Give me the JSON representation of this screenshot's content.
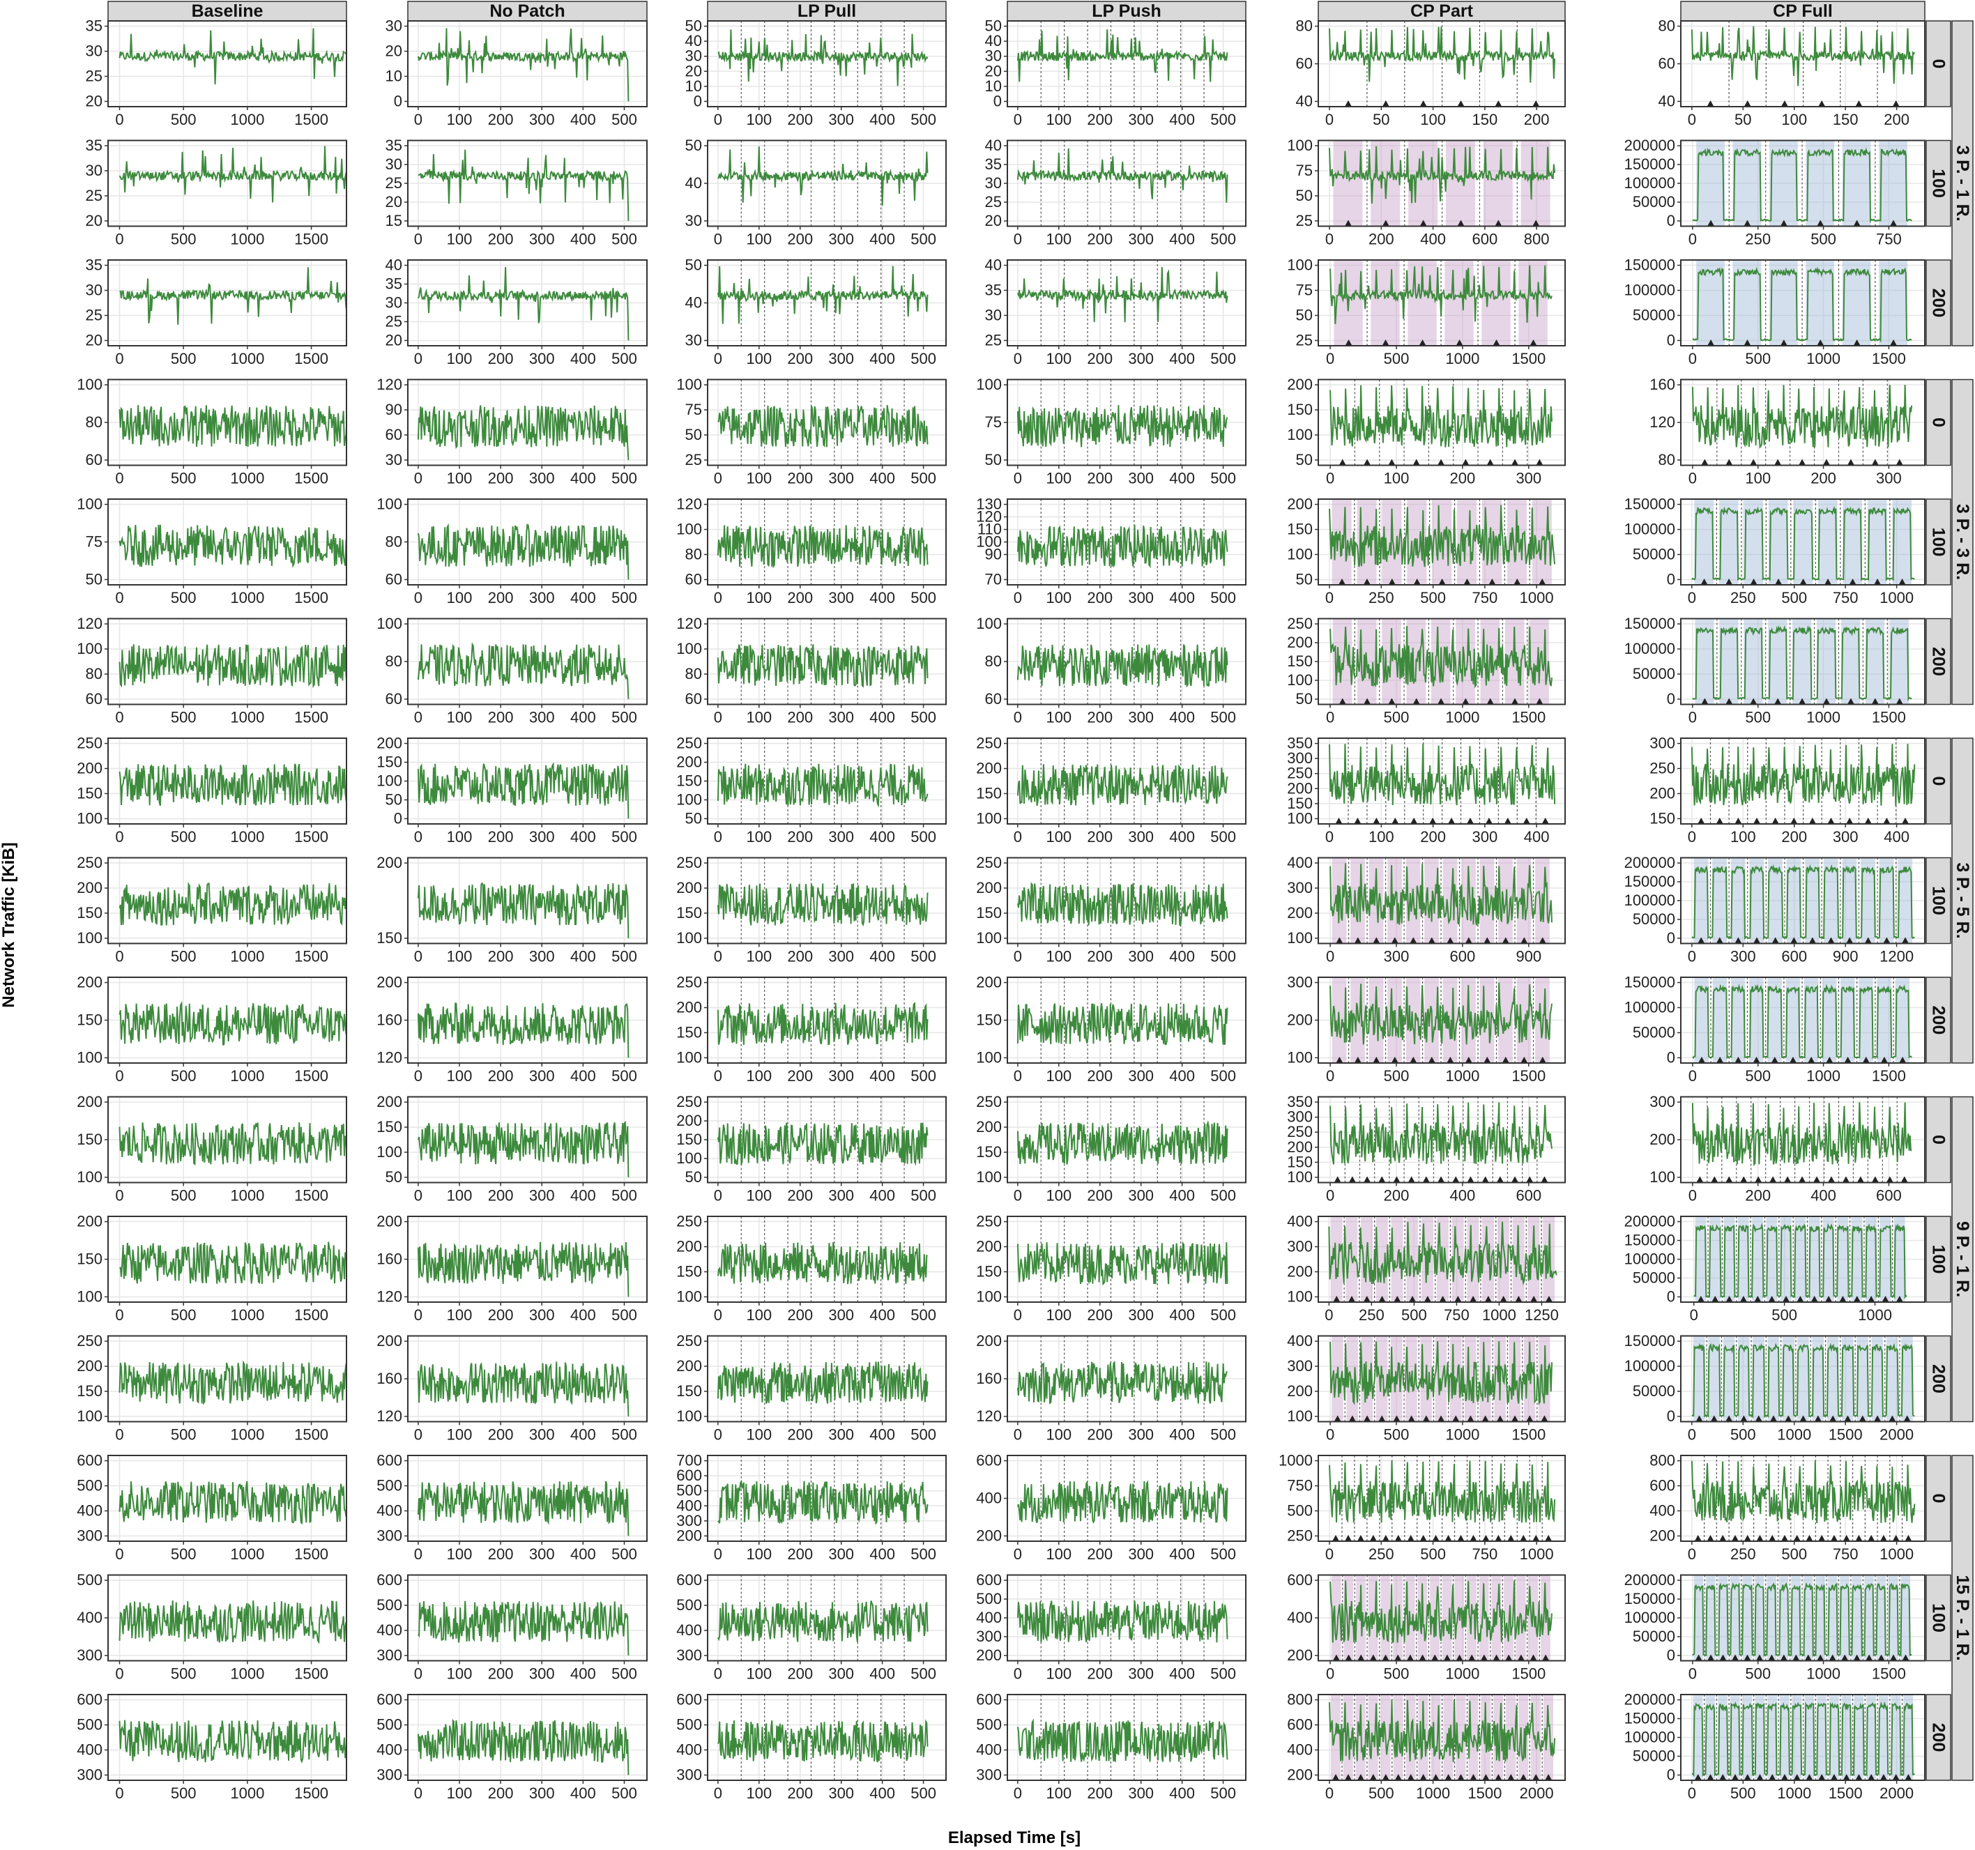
{
  "x_axis_label": "Elapsed Time [s]",
  "y_axis_label": "Network Traffic [KiB]",
  "column_headers": [
    "Baseline",
    "No Patch",
    "LP Pull",
    "LP Push",
    "CP Part",
    "CP Full"
  ],
  "row_group_labels": [
    "3 P. - 1 R.",
    "3 P. - 3 R.",
    "3 P. - 5 R.",
    "9 P. - 1 R.",
    "15 P. - 1 R."
  ],
  "row_labels": [
    "0",
    "100",
    "200",
    "0",
    "100",
    "200",
    "0",
    "100",
    "200",
    "0",
    "100",
    "200",
    "0",
    "100",
    "200"
  ],
  "colors": {
    "series": "#3d8a3d",
    "panel_border": "#333333",
    "grid": "#e6e6e6",
    "strip_bg": "#d9d9d9",
    "shade_part": "#c8a2c8",
    "shade_full": "#9fb8d6",
    "marker": "#222222"
  },
  "chart_data": {
    "type": "line",
    "facet_grid": {
      "columns": 6,
      "rows": 15
    },
    "x_ticks": [
      [
        [
          0,
          500,
          1000,
          1500
        ],
        [
          0,
          100,
          200,
          300,
          400,
          500
        ],
        [
          0,
          100,
          200,
          300,
          400,
          500
        ],
        [
          0,
          100,
          200,
          300,
          400,
          500
        ],
        [
          0,
          50,
          100,
          150,
          200
        ],
        [
          0,
          50,
          100,
          150,
          200
        ]
      ],
      [
        [
          0,
          500,
          1000,
          1500
        ],
        [
          0,
          100,
          200,
          300,
          400,
          500
        ],
        [
          0,
          100,
          200,
          300,
          400,
          500
        ],
        [
          0,
          100,
          200,
          300,
          400,
          500
        ],
        [
          0,
          200,
          400,
          600,
          800
        ],
        [
          0,
          250,
          500,
          750
        ]
      ],
      [
        [
          0,
          500,
          1000,
          1500
        ],
        [
          0,
          100,
          200,
          300,
          400,
          500
        ],
        [
          0,
          100,
          200,
          300,
          400,
          500
        ],
        [
          0,
          100,
          200,
          300,
          400,
          500
        ],
        [
          0,
          500,
          1000,
          1500
        ],
        [
          0,
          500,
          1000,
          1500
        ]
      ],
      [
        [
          0,
          500,
          1000,
          1500
        ],
        [
          0,
          100,
          200,
          300,
          400,
          500
        ],
        [
          0,
          100,
          200,
          300,
          400,
          500
        ],
        [
          0,
          100,
          200,
          300,
          400,
          500
        ],
        [
          0,
          100,
          200,
          300
        ],
        [
          0,
          100,
          200,
          300
        ]
      ],
      [
        [
          0,
          500,
          1000,
          1500
        ],
        [
          0,
          100,
          200,
          300,
          400,
          500
        ],
        [
          0,
          100,
          200,
          300,
          400,
          500
        ],
        [
          0,
          100,
          200,
          300,
          400,
          500
        ],
        [
          0,
          250,
          500,
          750,
          1000
        ],
        [
          0,
          250,
          500,
          750,
          1000
        ]
      ],
      [
        [
          0,
          500,
          1000,
          1500
        ],
        [
          0,
          100,
          200,
          300,
          400,
          500
        ],
        [
          0,
          100,
          200,
          300,
          400,
          500
        ],
        [
          0,
          100,
          200,
          300,
          400,
          500
        ],
        [
          0,
          500,
          1000,
          1500
        ],
        [
          0,
          500,
          1000,
          1500
        ]
      ],
      [
        [
          0,
          500,
          1000,
          1500
        ],
        [
          0,
          100,
          200,
          300,
          400,
          500
        ],
        [
          0,
          100,
          200,
          300,
          400,
          500
        ],
        [
          0,
          100,
          200,
          300,
          400,
          500
        ],
        [
          0,
          100,
          200,
          300,
          400
        ],
        [
          0,
          100,
          200,
          300,
          400
        ]
      ],
      [
        [
          0,
          500,
          1000,
          1500
        ],
        [
          0,
          100,
          200,
          300,
          400,
          500
        ],
        [
          0,
          100,
          200,
          300,
          400,
          500
        ],
        [
          0,
          100,
          200,
          300,
          400,
          500
        ],
        [
          0,
          300,
          600,
          900
        ],
        [
          0,
          300,
          600,
          900,
          1200
        ]
      ],
      [
        [
          0,
          500,
          1000,
          1500
        ],
        [
          0,
          100,
          200,
          300,
          400,
          500
        ],
        [
          0,
          100,
          200,
          300,
          400,
          500
        ],
        [
          0,
          100,
          200,
          300,
          400,
          500
        ],
        [
          0,
          500,
          1000,
          1500
        ],
        [
          0,
          500,
          1000,
          1500
        ]
      ],
      [
        [
          0,
          500,
          1000,
          1500
        ],
        [
          0,
          100,
          200,
          300,
          400,
          500
        ],
        [
          0,
          100,
          200,
          300,
          400,
          500
        ],
        [
          0,
          100,
          200,
          300,
          400,
          500
        ],
        [
          0,
          200,
          400,
          600
        ],
        [
          0,
          200,
          400,
          600
        ]
      ],
      [
        [
          0,
          500,
          1000,
          1500
        ],
        [
          0,
          100,
          200,
          300,
          400,
          500
        ],
        [
          0,
          100,
          200,
          300,
          400,
          500
        ],
        [
          0,
          100,
          200,
          300,
          400,
          500
        ],
        [
          0,
          250,
          500,
          750,
          1000,
          1250
        ],
        [
          0,
          500,
          1000
        ]
      ],
      [
        [
          0,
          500,
          1000,
          1500
        ],
        [
          0,
          100,
          200,
          300,
          400,
          500
        ],
        [
          0,
          100,
          200,
          300,
          400,
          500
        ],
        [
          0,
          100,
          200,
          300,
          400,
          500
        ],
        [
          0,
          500,
          1000,
          1500
        ],
        [
          0,
          500,
          1000,
          1500,
          2000
        ]
      ],
      [
        [
          0,
          500,
          1000,
          1500
        ],
        [
          0,
          100,
          200,
          300,
          400,
          500
        ],
        [
          0,
          100,
          200,
          300,
          400,
          500
        ],
        [
          0,
          100,
          200,
          300,
          400,
          500
        ],
        [
          0,
          250,
          500,
          750,
          1000
        ],
        [
          0,
          250,
          500,
          750,
          1000
        ]
      ],
      [
        [
          0,
          500,
          1000,
          1500
        ],
        [
          0,
          100,
          200,
          300,
          400,
          500
        ],
        [
          0,
          100,
          200,
          300,
          400,
          500
        ],
        [
          0,
          100,
          200,
          300,
          400,
          500
        ],
        [
          0,
          500,
          1000,
          1500
        ],
        [
          0,
          500,
          1000,
          1500
        ]
      ],
      [
        [
          0,
          500,
          1000,
          1500
        ],
        [
          0,
          100,
          200,
          300,
          400,
          500
        ],
        [
          0,
          100,
          200,
          300,
          400,
          500
        ],
        [
          0,
          100,
          200,
          300,
          400,
          500
        ],
        [
          0,
          500,
          1000,
          1500,
          2000
        ],
        [
          0,
          500,
          1000,
          1500,
          2000
        ]
      ]
    ],
    "y_ticks": [
      [
        [
          20,
          25,
          30,
          35
        ],
        [
          0,
          10,
          20,
          30
        ],
        [
          0,
          10,
          20,
          30,
          40,
          50
        ],
        [
          0,
          10,
          20,
          30,
          40,
          50
        ],
        [
          40,
          60,
          80
        ],
        [
          40,
          60,
          80
        ]
      ],
      [
        [
          20,
          25,
          30,
          35
        ],
        [
          15,
          20,
          25,
          30,
          35
        ],
        [
          30,
          40,
          50
        ],
        [
          20,
          25,
          30,
          35,
          40
        ],
        [
          25,
          50,
          75,
          100
        ],
        [
          0,
          50000,
          100000,
          150000,
          200000
        ]
      ],
      [
        [
          20,
          25,
          30,
          35
        ],
        [
          20,
          25,
          30,
          35,
          40
        ],
        [
          30,
          40,
          50
        ],
        [
          25,
          30,
          35,
          40
        ],
        [
          25,
          50,
          75,
          100
        ],
        [
          0,
          50000,
          100000,
          150000
        ]
      ],
      [
        [
          60,
          80,
          100
        ],
        [
          30,
          60,
          90,
          120
        ],
        [
          25,
          50,
          75,
          100
        ],
        [
          50,
          75,
          100
        ],
        [
          50,
          100,
          150,
          200
        ],
        [
          80,
          120,
          160
        ]
      ],
      [
        [
          50,
          75,
          100
        ],
        [
          60,
          80,
          100
        ],
        [
          60,
          80,
          100,
          120
        ],
        [
          70,
          90,
          100,
          110,
          120,
          130
        ],
        [
          50,
          100,
          150,
          200
        ],
        [
          0,
          50000,
          100000,
          150000
        ]
      ],
      [
        [
          60,
          80,
          100,
          120
        ],
        [
          60,
          80,
          100
        ],
        [
          60,
          80,
          100,
          120
        ],
        [
          60,
          80,
          100
        ],
        [
          50,
          100,
          150,
          200,
          250
        ],
        [
          0,
          50000,
          100000,
          150000
        ]
      ],
      [
        [
          100,
          150,
          200,
          250
        ],
        [
          0,
          50,
          100,
          150,
          200
        ],
        [
          50,
          100,
          150,
          200,
          250
        ],
        [
          100,
          150,
          200,
          250
        ],
        [
          100,
          150,
          200,
          250,
          300,
          350
        ],
        [
          150,
          200,
          250,
          300
        ]
      ],
      [
        [
          100,
          150,
          200,
          250
        ],
        [
          150,
          200
        ],
        [
          100,
          150,
          200,
          250
        ],
        [
          100,
          150,
          200,
          250
        ],
        [
          100,
          200,
          300,
          400
        ],
        [
          0,
          50000,
          100000,
          150000,
          200000
        ]
      ],
      [
        [
          100,
          150,
          200
        ],
        [
          120,
          160,
          200
        ],
        [
          100,
          150,
          200,
          250
        ],
        [
          100,
          150,
          200
        ],
        [
          100,
          200,
          300
        ],
        [
          0,
          50000,
          100000,
          150000
        ]
      ],
      [
        [
          100,
          150,
          200
        ],
        [
          50,
          100,
          150,
          200
        ],
        [
          50,
          100,
          150,
          200,
          250
        ],
        [
          100,
          150,
          200,
          250
        ],
        [
          100,
          150,
          200,
          250,
          300,
          350
        ],
        [
          100,
          200,
          300
        ]
      ],
      [
        [
          100,
          150,
          200
        ],
        [
          120,
          160,
          200
        ],
        [
          100,
          150,
          200,
          250
        ],
        [
          100,
          150,
          200,
          250
        ],
        [
          100,
          200,
          300,
          400
        ],
        [
          0,
          50000,
          100000,
          150000,
          200000
        ]
      ],
      [
        [
          100,
          150,
          200,
          250
        ],
        [
          120,
          160,
          200
        ],
        [
          100,
          150,
          200,
          250
        ],
        [
          120,
          160,
          200
        ],
        [
          100,
          200,
          300,
          400
        ],
        [
          0,
          50000,
          100000,
          150000
        ]
      ],
      [
        [
          300,
          400,
          500,
          600
        ],
        [
          300,
          400,
          500,
          600
        ],
        [
          200,
          300,
          400,
          500,
          600,
          700
        ],
        [
          200,
          400,
          600
        ],
        [
          250,
          500,
          750,
          1000
        ],
        [
          200,
          400,
          600,
          800
        ]
      ],
      [
        [
          300,
          400,
          500
        ],
        [
          300,
          400,
          500,
          600
        ],
        [
          300,
          400,
          500,
          600
        ],
        [
          200,
          300,
          400,
          500,
          600
        ],
        [
          200,
          400,
          600
        ],
        [
          0,
          50000,
          100000,
          150000,
          200000
        ]
      ],
      [
        [
          300,
          400,
          500,
          600
        ],
        [
          300,
          400,
          500,
          600
        ],
        [
          300,
          400,
          500,
          600
        ],
        [
          300,
          400,
          500,
          600
        ],
        [
          200,
          400,
          600,
          800
        ],
        [
          0,
          50000,
          100000,
          150000,
          200000
        ]
      ]
    ]
  }
}
